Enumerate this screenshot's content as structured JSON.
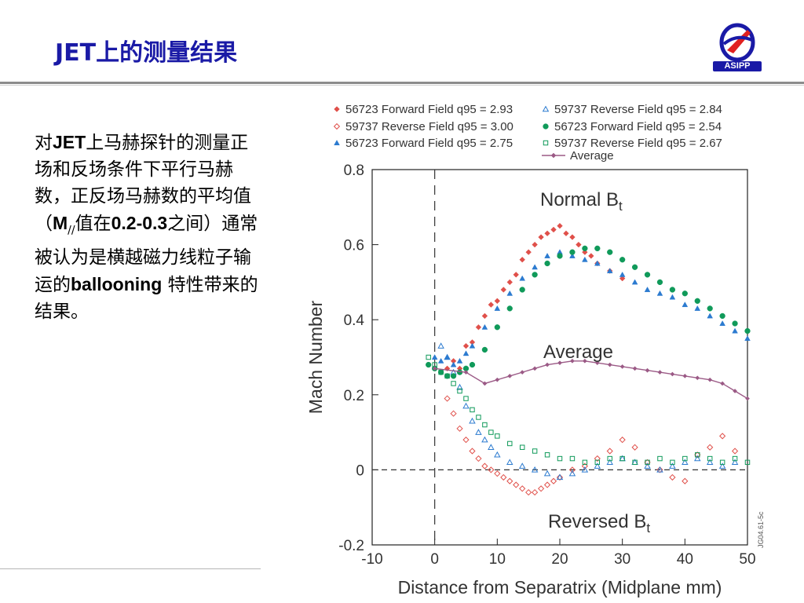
{
  "slide": {
    "title": "JET上的测量结果",
    "logo_text": "ASIPP",
    "body": {
      "p1": "对",
      "p2": "JET",
      "p3": "上马赫探针的测量正场和反场条件下平行马赫数，正反场马赫数的平均值（",
      "p4": "M",
      "p5": "//",
      "p6": "值在",
      "p7": "0.2-0.3",
      "p8": "之间）通常被认为是横越磁力线粒子输运的",
      "p9": "ballooning",
      "p10": " 特性带来的结果。"
    }
  },
  "chart_data": {
    "type": "scatter",
    "xlabel": "Distance from Separatrix (Midplane mm)",
    "ylabel": "Mach Number",
    "xlim": [
      -10,
      50
    ],
    "ylim": [
      -0.2,
      0.8
    ],
    "xticks": [
      -10,
      0,
      10,
      20,
      30,
      40,
      50
    ],
    "yticks": [
      -0.2,
      0,
      0.2,
      0.4,
      0.6,
      0.8
    ],
    "ytick_labels": [
      "-0.2",
      "0",
      "0.2",
      "0.4",
      "0.6",
      "0.8"
    ],
    "annotations": {
      "normal": "Normal B",
      "normal_sub": "t",
      "average": "Average",
      "reversed": "Reversed B",
      "reversed_sub": "t",
      "fig_id": "JG04.61-5c"
    },
    "legend_position": "top",
    "series": [
      {
        "name": "56723 Forward Field q95 = 2.93",
        "marker": "diamond-filled",
        "color": "#e0504a",
        "points": [
          [
            2,
            0.27
          ],
          [
            3,
            0.29
          ],
          [
            4,
            0.27
          ],
          [
            5,
            0.33
          ],
          [
            6,
            0.34
          ],
          [
            7,
            0.38
          ],
          [
            8,
            0.41
          ],
          [
            9,
            0.44
          ],
          [
            10,
            0.45
          ],
          [
            11,
            0.48
          ],
          [
            12,
            0.5
          ],
          [
            13,
            0.52
          ],
          [
            14,
            0.56
          ],
          [
            15,
            0.58
          ],
          [
            16,
            0.6
          ],
          [
            17,
            0.62
          ],
          [
            18,
            0.63
          ],
          [
            19,
            0.64
          ],
          [
            20,
            0.65
          ],
          [
            21,
            0.63
          ],
          [
            22,
            0.62
          ],
          [
            23,
            0.6
          ],
          [
            24,
            0.58
          ],
          [
            25,
            0.57
          ],
          [
            26,
            0.55
          ],
          [
            28,
            0.53
          ],
          [
            30,
            0.51
          ]
        ]
      },
      {
        "name": "59737 Reverse Field q95 = 3.00",
        "marker": "diamond-open",
        "color": "#e0504a",
        "points": [
          [
            2,
            0.19
          ],
          [
            3,
            0.15
          ],
          [
            4,
            0.11
          ],
          [
            5,
            0.08
          ],
          [
            6,
            0.05
          ],
          [
            7,
            0.03
          ],
          [
            8,
            0.01
          ],
          [
            9,
            0.0
          ],
          [
            10,
            -0.01
          ],
          [
            11,
            -0.02
          ],
          [
            12,
            -0.03
          ],
          [
            13,
            -0.04
          ],
          [
            14,
            -0.05
          ],
          [
            15,
            -0.06
          ],
          [
            16,
            -0.06
          ],
          [
            17,
            -0.05
          ],
          [
            18,
            -0.04
          ],
          [
            19,
            -0.03
          ],
          [
            20,
            -0.02
          ],
          [
            22,
            0.0
          ],
          [
            24,
            0.01
          ],
          [
            26,
            0.03
          ],
          [
            28,
            0.05
          ],
          [
            30,
            0.08
          ],
          [
            32,
            0.06
          ],
          [
            34,
            0.02
          ],
          [
            36,
            0.0
          ],
          [
            38,
            -0.02
          ],
          [
            40,
            -0.03
          ],
          [
            42,
            0.04
          ],
          [
            44,
            0.06
          ],
          [
            46,
            0.09
          ],
          [
            48,
            0.05
          ]
        ]
      },
      {
        "name": "56723 Forward Field q95 = 2.75",
        "marker": "triangle-filled",
        "color": "#2c7bd0",
        "points": [
          [
            0,
            0.3
          ],
          [
            1,
            0.29
          ],
          [
            2,
            0.3
          ],
          [
            3,
            0.28
          ],
          [
            4,
            0.29
          ],
          [
            5,
            0.31
          ],
          [
            6,
            0.33
          ],
          [
            8,
            0.38
          ],
          [
            10,
            0.43
          ],
          [
            12,
            0.47
          ],
          [
            14,
            0.51
          ],
          [
            16,
            0.54
          ],
          [
            18,
            0.57
          ],
          [
            20,
            0.58
          ],
          [
            22,
            0.57
          ],
          [
            24,
            0.56
          ],
          [
            26,
            0.55
          ],
          [
            28,
            0.53
          ],
          [
            30,
            0.52
          ],
          [
            32,
            0.5
          ],
          [
            34,
            0.48
          ],
          [
            36,
            0.47
          ],
          [
            38,
            0.46
          ],
          [
            40,
            0.44
          ],
          [
            42,
            0.43
          ],
          [
            44,
            0.41
          ],
          [
            46,
            0.39
          ],
          [
            48,
            0.37
          ],
          [
            50,
            0.35
          ]
        ]
      },
      {
        "name": "59737 Reverse Field q95 = 2.84",
        "marker": "triangle-open",
        "color": "#2c7bd0",
        "points": [
          [
            1,
            0.33
          ],
          [
            2,
            0.3
          ],
          [
            3,
            0.26
          ],
          [
            4,
            0.22
          ],
          [
            5,
            0.17
          ],
          [
            6,
            0.13
          ],
          [
            7,
            0.1
          ],
          [
            8,
            0.08
          ],
          [
            9,
            0.06
          ],
          [
            10,
            0.04
          ],
          [
            12,
            0.02
          ],
          [
            14,
            0.01
          ],
          [
            16,
            0.0
          ],
          [
            18,
            -0.01
          ],
          [
            20,
            -0.02
          ],
          [
            22,
            -0.01
          ],
          [
            24,
            0.0
          ],
          [
            26,
            0.01
          ],
          [
            28,
            0.02
          ],
          [
            30,
            0.03
          ],
          [
            32,
            0.02
          ],
          [
            34,
            0.01
          ],
          [
            36,
            0.0
          ],
          [
            38,
            0.01
          ],
          [
            40,
            0.02
          ],
          [
            42,
            0.03
          ],
          [
            44,
            0.02
          ],
          [
            46,
            0.01
          ],
          [
            48,
            0.02
          ]
        ]
      },
      {
        "name": "56723 Forward Field q95 = 2.54",
        "marker": "circle-filled",
        "color": "#109a5a",
        "points": [
          [
            -1,
            0.28
          ],
          [
            0,
            0.27
          ],
          [
            1,
            0.26
          ],
          [
            2,
            0.25
          ],
          [
            3,
            0.25
          ],
          [
            4,
            0.26
          ],
          [
            5,
            0.27
          ],
          [
            6,
            0.28
          ],
          [
            8,
            0.32
          ],
          [
            10,
            0.38
          ],
          [
            12,
            0.43
          ],
          [
            14,
            0.48
          ],
          [
            16,
            0.52
          ],
          [
            18,
            0.55
          ],
          [
            20,
            0.57
          ],
          [
            22,
            0.58
          ],
          [
            24,
            0.59
          ],
          [
            26,
            0.59
          ],
          [
            28,
            0.58
          ],
          [
            30,
            0.56
          ],
          [
            32,
            0.54
          ],
          [
            34,
            0.52
          ],
          [
            36,
            0.5
          ],
          [
            38,
            0.48
          ],
          [
            40,
            0.47
          ],
          [
            42,
            0.45
          ],
          [
            44,
            0.43
          ],
          [
            46,
            0.41
          ],
          [
            48,
            0.39
          ],
          [
            50,
            0.37
          ]
        ]
      },
      {
        "name": "59737 Reverse Field q95 = 2.67",
        "marker": "square-open",
        "color": "#109a5a",
        "points": [
          [
            -1,
            0.3
          ],
          [
            0,
            0.28
          ],
          [
            1,
            0.26
          ],
          [
            2,
            0.25
          ],
          [
            3,
            0.23
          ],
          [
            4,
            0.21
          ],
          [
            5,
            0.19
          ],
          [
            6,
            0.16
          ],
          [
            7,
            0.14
          ],
          [
            8,
            0.12
          ],
          [
            9,
            0.1
          ],
          [
            10,
            0.09
          ],
          [
            12,
            0.07
          ],
          [
            14,
            0.06
          ],
          [
            16,
            0.05
          ],
          [
            18,
            0.04
          ],
          [
            20,
            0.03
          ],
          [
            22,
            0.03
          ],
          [
            24,
            0.02
          ],
          [
            26,
            0.02
          ],
          [
            28,
            0.03
          ],
          [
            30,
            0.03
          ],
          [
            32,
            0.02
          ],
          [
            34,
            0.02
          ],
          [
            36,
            0.03
          ],
          [
            38,
            0.02
          ],
          [
            40,
            0.03
          ],
          [
            42,
            0.04
          ],
          [
            44,
            0.03
          ],
          [
            46,
            0.02
          ],
          [
            48,
            0.03
          ],
          [
            50,
            0.02
          ]
        ]
      },
      {
        "name": "Average",
        "marker": "line-diamond",
        "color": "#9b5a86",
        "points": [
          [
            0,
            0.27
          ],
          [
            5,
            0.26
          ],
          [
            8,
            0.23
          ],
          [
            10,
            0.24
          ],
          [
            12,
            0.25
          ],
          [
            14,
            0.26
          ],
          [
            16,
            0.27
          ],
          [
            18,
            0.28
          ],
          [
            20,
            0.285
          ],
          [
            22,
            0.29
          ],
          [
            24,
            0.29
          ],
          [
            26,
            0.285
          ],
          [
            28,
            0.28
          ],
          [
            30,
            0.275
          ],
          [
            32,
            0.27
          ],
          [
            34,
            0.265
          ],
          [
            36,
            0.26
          ],
          [
            38,
            0.255
          ],
          [
            40,
            0.25
          ],
          [
            42,
            0.245
          ],
          [
            44,
            0.24
          ],
          [
            46,
            0.23
          ],
          [
            48,
            0.21
          ],
          [
            50,
            0.19
          ]
        ]
      }
    ]
  }
}
